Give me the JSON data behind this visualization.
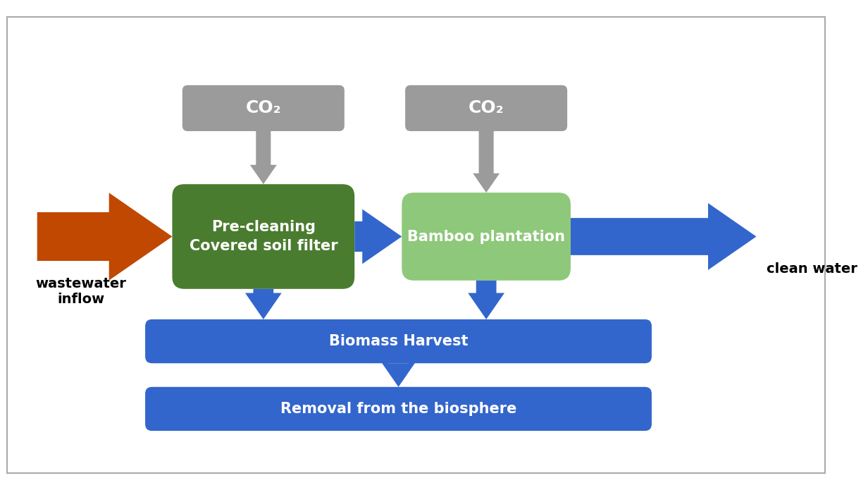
{
  "bg_color": "#ffffff",
  "border_color": "#aaaaaa",
  "co2_box_color": "#9b9b9b",
  "co2_text_color": "#ffffff",
  "precleaning_box_color": "#4a7c2f",
  "precleaning_text_color": "#ffffff",
  "bamboo_box_color": "#8ec87a",
  "bamboo_text_color": "#ffffff",
  "biomass_box_color": "#3366cc",
  "biomass_text_color": "#ffffff",
  "removal_box_color": "#3366cc",
  "removal_text_color": "#ffffff",
  "wastewater_arrow_color": "#c04800",
  "blue_arrow_color": "#3366cc",
  "gray_arrow_color": "#9b9b9b",
  "wastewater_label": "wastewater\ninflow",
  "clean_water_label": "clean water",
  "co2_label": "CO₂",
  "precleaning_label": "Pre-cleaning\nCovered soil filter",
  "bamboo_label": "Bamboo plantation",
  "biomass_label": "Biomass Harvest",
  "removal_label": "Removal from the biosphere"
}
